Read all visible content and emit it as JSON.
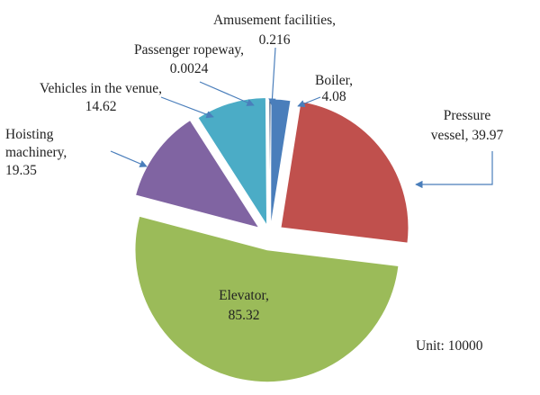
{
  "chart_data": {
    "type": "pie",
    "exploded": true,
    "unit_label": "Unit: 10000",
    "slices": [
      {
        "name": "Boiler",
        "value": 4.08,
        "color": "#4a7ebb",
        "label_lines": [
          "Boiler,",
          "4.08"
        ]
      },
      {
        "name": "Pressure vessel",
        "value": 39.97,
        "color": "#c0504d",
        "label_lines": [
          "Pressure",
          "vessel, 39.97"
        ]
      },
      {
        "name": "Elevator",
        "value": 85.32,
        "color": "#9bbb59",
        "label_lines": [
          "Elevator,",
          "85.32"
        ]
      },
      {
        "name": "Hoisting machinery",
        "value": 19.35,
        "color": "#8064a2",
        "label_lines": [
          "Hoisting",
          "machinery,",
          "19.35"
        ]
      },
      {
        "name": "Vehicles in the venue",
        "value": 14.62,
        "color": "#4bacc6",
        "label_lines": [
          "Vehicles in the venue,",
          "14.62"
        ]
      },
      {
        "name": "Passenger ropeway",
        "value": 0.0024,
        "color": "#f79646",
        "label_lines": [
          "Passenger ropeway,",
          "0.0024"
        ]
      },
      {
        "name": "Amusement facilities",
        "value": 0.216,
        "color": "#2c4d75",
        "label_lines": [
          "Amusement facilities,",
          "0.216"
        ]
      }
    ]
  }
}
